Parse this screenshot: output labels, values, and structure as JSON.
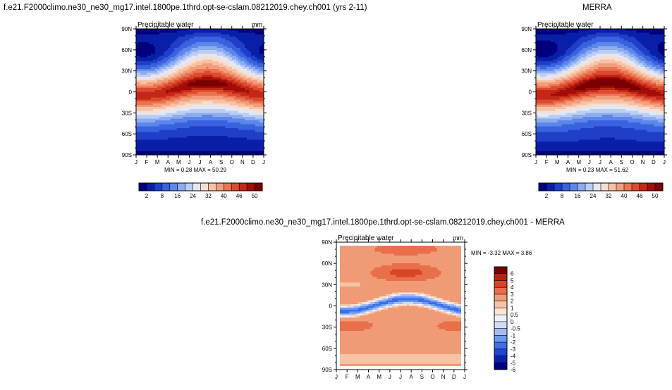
{
  "titles": {
    "left": "f.e21.F2000climo.ne30_ne30_mg17.intel.1800pe.1thrd.opt-se-cslam.08212019.chey.ch001 (yrs 2-11)",
    "right": "MERRA",
    "bottom": "f.e21.F2000climo.ne30_ne30_mg17.intel.1800pe.1thrd.opt-se-cslam.08212019.chey.ch001 - MERRA"
  },
  "chart_data": [
    {
      "type": "heatmap",
      "id": "model",
      "panel_label": "Precipitable water",
      "units": "mm",
      "x_ticks": [
        "J",
        "F",
        "M",
        "A",
        "M",
        "J",
        "J",
        "A",
        "S",
        "O",
        "N",
        "D",
        "J"
      ],
      "y_ticks": [
        "90N",
        "60N",
        "30N",
        "0",
        "30S",
        "60S",
        "90S"
      ],
      "ylim": [
        -90,
        90
      ],
      "min_label": "MIN =  0.28",
      "max_label": "MAX =  50.29",
      "min": 0.28,
      "max": 50.29,
      "colorbar": {
        "orientation": "horizontal",
        "labels": [
          "2",
          "8",
          "16",
          "24",
          "32",
          "40",
          "46",
          "50"
        ]
      }
    },
    {
      "type": "heatmap",
      "id": "merra",
      "panel_label": "Precipitable water",
      "units": "",
      "x_ticks": [
        "J",
        "F",
        "M",
        "A",
        "M",
        "J",
        "J",
        "A",
        "S",
        "O",
        "N",
        "D",
        "J"
      ],
      "y_ticks": [
        "90N",
        "60N",
        "30N",
        "0",
        "30S",
        "60S",
        "90S"
      ],
      "ylim": [
        -90,
        90
      ],
      "min_label": "MIN =  0.23",
      "max_label": "MAX =  51.62",
      "min": 0.23,
      "max": 51.62,
      "colorbar": {
        "orientation": "horizontal",
        "labels": [
          "2",
          "8",
          "16",
          "24",
          "32",
          "40",
          "46",
          "50"
        ]
      }
    },
    {
      "type": "heatmap",
      "id": "diff",
      "panel_label": "Precipitable water",
      "units": "mm",
      "x_ticks": [
        "J",
        "F",
        "M",
        "A",
        "M",
        "J",
        "J",
        "A",
        "S",
        "O",
        "N",
        "D",
        "J"
      ],
      "y_ticks": [
        "90N",
        "60N",
        "30N",
        "0",
        "30S",
        "60S",
        "90S"
      ],
      "ylim": [
        -90,
        90
      ],
      "min_label": "MIN = -3.32",
      "max_label": "MAX =  3.86",
      "min": -3.32,
      "max": 3.86,
      "colorbar": {
        "orientation": "vertical",
        "labels": [
          "6",
          "5",
          "4",
          "3",
          "2",
          "1",
          "0.5",
          "0",
          "-0.5",
          "-1",
          "-2",
          "-3",
          "-4",
          "-5",
          "-6"
        ]
      }
    }
  ],
  "colors": {
    "seq": [
      "#00007f",
      "#0a1fa8",
      "#1f3fc8",
      "#3a62df",
      "#5b86eb",
      "#8cabf0",
      "#bccdf3",
      "#e2e8f5",
      "#f8ded0",
      "#f6c2a6",
      "#f39e7b",
      "#ea7452",
      "#dd4a2d",
      "#c42717",
      "#a10d07",
      "#7a0000"
    ],
    "div": [
      "#00007f",
      "#0b1fb0",
      "#1f44d8",
      "#3d6fea",
      "#6d98f0",
      "#a3bdf3",
      "#cfdcf4",
      "#eef2f8",
      "#fbe4d3",
      "#f6c3a4",
      "#f19b76",
      "#e86f4a",
      "#da4526",
      "#bd200e",
      "#7a0000"
    ]
  }
}
